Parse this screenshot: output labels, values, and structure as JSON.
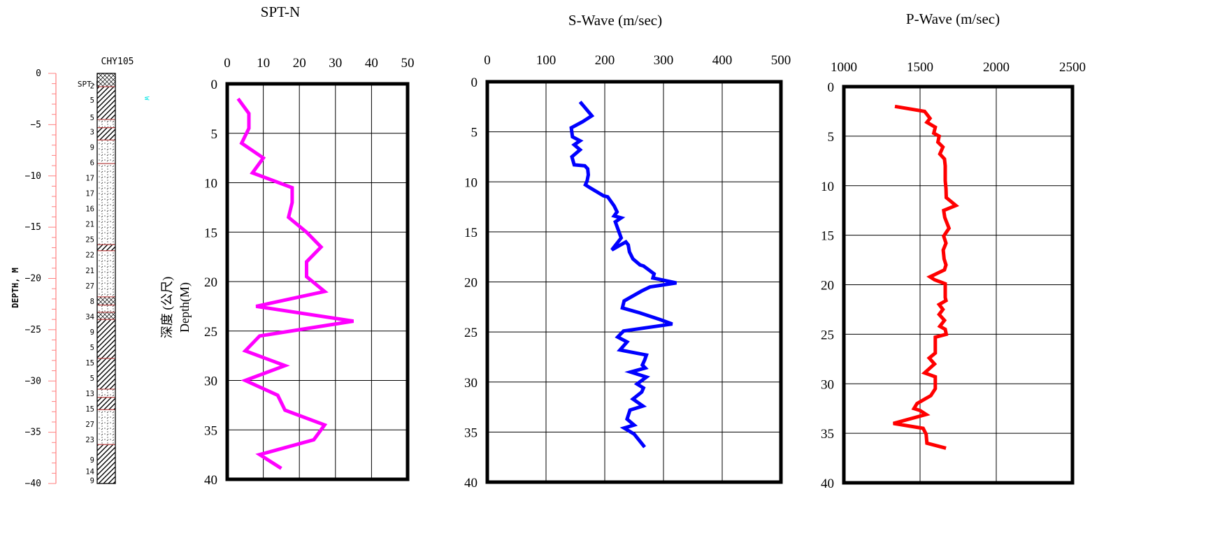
{
  "boring_log": {
    "title": "CHY105",
    "ylabel": "DEPTH, M",
    "spt_label": "SPT-N",
    "depth_ticks": [
      0,
      -5,
      -10,
      -15,
      -20,
      -25,
      -30,
      -35,
      -40
    ],
    "depth_tick_labels": [
      "0",
      "−5",
      "−10",
      "−15",
      "−20",
      "−25",
      "−30",
      "−35",
      "−40"
    ],
    "spt_values": [
      {
        "depth": 1.2,
        "n": "2"
      },
      {
        "depth": 2.6,
        "n": "5"
      },
      {
        "depth": 4.3,
        "n": "5"
      },
      {
        "depth": 5.7,
        "n": "3"
      },
      {
        "depth": 7.2,
        "n": "9"
      },
      {
        "depth": 8.7,
        "n": "6"
      },
      {
        "depth": 10.2,
        "n": "17"
      },
      {
        "depth": 11.7,
        "n": "17"
      },
      {
        "depth": 13.2,
        "n": "16"
      },
      {
        "depth": 14.7,
        "n": "21"
      },
      {
        "depth": 16.2,
        "n": "25"
      },
      {
        "depth": 17.7,
        "n": "22"
      },
      {
        "depth": 19.2,
        "n": "21"
      },
      {
        "depth": 20.7,
        "n": "27"
      },
      {
        "depth": 22.2,
        "n": "8"
      },
      {
        "depth": 23.7,
        "n": "34"
      },
      {
        "depth": 25.2,
        "n": "9"
      },
      {
        "depth": 26.7,
        "n": "5"
      },
      {
        "depth": 28.2,
        "n": "15"
      },
      {
        "depth": 29.7,
        "n": "5"
      },
      {
        "depth": 31.2,
        "n": "13"
      },
      {
        "depth": 32.7,
        "n": "15"
      },
      {
        "depth": 34.2,
        "n": "27"
      },
      {
        "depth": 35.7,
        "n": "23"
      },
      {
        "depth": 37.7,
        "n": "9"
      },
      {
        "depth": 38.8,
        "n": "14"
      },
      {
        "depth": 39.7,
        "n": "9"
      }
    ],
    "layers": [
      {
        "top": 0,
        "bottom": 1.3,
        "pattern": "cross"
      },
      {
        "top": 1.3,
        "bottom": 4.5,
        "pattern": "hatch"
      },
      {
        "top": 4.5,
        "bottom": 5.3,
        "pattern": "dots"
      },
      {
        "top": 5.3,
        "bottom": 6.5,
        "pattern": "hatch"
      },
      {
        "top": 6.5,
        "bottom": 8.8,
        "pattern": "dots"
      },
      {
        "top": 8.8,
        "bottom": 16.7,
        "pattern": "dots"
      },
      {
        "top": 16.7,
        "bottom": 17.3,
        "pattern": "hatch"
      },
      {
        "top": 17.3,
        "bottom": 21.8,
        "pattern": "dots"
      },
      {
        "top": 21.8,
        "bottom": 22.6,
        "pattern": "cross"
      },
      {
        "top": 22.6,
        "bottom": 23.3,
        "pattern": "dots"
      },
      {
        "top": 23.3,
        "bottom": 24.0,
        "pattern": "cross"
      },
      {
        "top": 24.0,
        "bottom": 27.8,
        "pattern": "hatch"
      },
      {
        "top": 27.8,
        "bottom": 30.8,
        "pattern": "hatch"
      },
      {
        "top": 30.8,
        "bottom": 31.6,
        "pattern": "dots"
      },
      {
        "top": 31.6,
        "bottom": 32.8,
        "pattern": "hatch"
      },
      {
        "top": 32.8,
        "bottom": 36.2,
        "pattern": "dots"
      },
      {
        "top": 36.2,
        "bottom": 40.0,
        "pattern": "hatch"
      }
    ],
    "colors": {
      "ruler": "#ff8080",
      "layer_border": "#b03030",
      "marker": "#00e5e5"
    }
  },
  "depth_axis_label": {
    "chinese": "深度 (公尺)",
    "english": "Depth(M)"
  },
  "chart_data": [
    {
      "type": "line",
      "title": "SPT-N",
      "xlabel": "",
      "ylabel": "",
      "xlim": [
        0,
        50
      ],
      "ylim": [
        40,
        0
      ],
      "xticks": [
        0,
        10,
        20,
        30,
        40,
        50
      ],
      "yticks": [
        0,
        5,
        10,
        15,
        20,
        25,
        30,
        35,
        40
      ],
      "grid": true,
      "color": "#ff00ff",
      "x": [
        3,
        6,
        6,
        4,
        10,
        7,
        18,
        18,
        17,
        22,
        26,
        22,
        22,
        27,
        8,
        35,
        9,
        5,
        16,
        5,
        14,
        16,
        27,
        24,
        9,
        15
      ],
      "y": [
        1.5,
        3,
        4.5,
        6,
        7.5,
        9,
        10.5,
        12,
        13.5,
        15,
        16.5,
        18,
        19.5,
        21,
        22.5,
        24,
        25.5,
        27,
        28.5,
        30,
        31.5,
        33,
        34.5,
        36,
        37.5,
        38.9
      ]
    },
    {
      "type": "line",
      "title": "S-Wave (m/sec)",
      "xlabel": "",
      "ylabel": "",
      "xlim": [
        0,
        500
      ],
      "ylim": [
        40,
        0
      ],
      "xticks": [
        0,
        100,
        200,
        300,
        400,
        500
      ],
      "yticks": [
        0,
        5,
        10,
        15,
        20,
        25,
        30,
        35,
        40
      ],
      "grid": true,
      "color": "#0000ff",
      "x": [
        162,
        158,
        178,
        162,
        143,
        145,
        158,
        148,
        158,
        144,
        148,
        166,
        171,
        172,
        170,
        167,
        175,
        198,
        205,
        216,
        221,
        216,
        228,
        218,
        223,
        228,
        212,
        236,
        240,
        242,
        248,
        260,
        266,
        275,
        284,
        282,
        322,
        277,
        263,
        233,
        230,
        260,
        296,
        315,
        232,
        222,
        238,
        226,
        271,
        268,
        264,
        269,
        244,
        271,
        255,
        266,
        263,
        248,
        265,
        243,
        238,
        250,
        233,
        250,
        268
      ],
      "y": [
        2.3,
        2.0,
        3.4,
        4.0,
        4.6,
        5.5,
        5.9,
        6.3,
        6.8,
        7.5,
        8.3,
        8.4,
        8.7,
        9.3,
        9.9,
        10.3,
        10.6,
        11.4,
        11.5,
        12.4,
        13.0,
        13.4,
        13.6,
        14.0,
        14.8,
        15.6,
        16.8,
        16.0,
        16.3,
        17.0,
        17.7,
        18.3,
        18.4,
        18.8,
        19.2,
        19.6,
        20.1,
        20.5,
        20.9,
        21.9,
        22.6,
        23.1,
        23.8,
        24.2,
        24.9,
        25.5,
        26.0,
        26.8,
        27.3,
        27.8,
        28.3,
        28.6,
        29.0,
        29.5,
        30.2,
        30.6,
        31.0,
        31.7,
        32.4,
        32.8,
        33.7,
        34.3,
        34.6,
        35.2,
        36.5
      ]
    },
    {
      "type": "line",
      "title": "P-Wave (m/sec)",
      "xlabel": "",
      "ylabel": "",
      "xlim": [
        1000,
        2500
      ],
      "ylim": [
        40,
        0
      ],
      "xticks": [
        1000,
        1500,
        2000,
        2500
      ],
      "yticks": [
        0,
        5,
        10,
        15,
        20,
        25,
        30,
        35,
        40
      ],
      "grid": true,
      "color": "#ff0000",
      "x": [
        1335,
        1530,
        1565,
        1545,
        1600,
        1590,
        1625,
        1617,
        1650,
        1630,
        1660,
        1665,
        1665,
        1665,
        1670,
        1672,
        1735,
        1655,
        1662,
        1690,
        1655,
        1670,
        1652,
        1658,
        1670,
        1660,
        1565,
        1595,
        1665,
        1665,
        1665,
        1670,
        1625,
        1650,
        1625,
        1660,
        1630,
        1665,
        1672,
        1600,
        1600,
        1600,
        1560,
        1595,
        1530,
        1600,
        1600,
        1570,
        1480,
        1460,
        1500,
        1540,
        1325,
        1520,
        1540,
        1545,
        1670
      ],
      "y": [
        2.0,
        2.5,
        3.2,
        3.6,
        4.1,
        4.7,
        5.0,
        5.6,
        6.1,
        6.8,
        7.3,
        8.0,
        8.8,
        9.5,
        10.3,
        11.2,
        12.0,
        12.5,
        13.2,
        14.3,
        15.1,
        15.8,
        16.5,
        17.4,
        18.0,
        18.5,
        19.2,
        19.5,
        19.9,
        20.6,
        21.3,
        21.6,
        22.0,
        22.5,
        23.0,
        23.6,
        24.2,
        24.5,
        25.0,
        25.3,
        26.1,
        26.9,
        27.4,
        28.0,
        28.9,
        29.3,
        30.5,
        31.2,
        32.0,
        32.5,
        32.7,
        33.1,
        34.0,
        34.5,
        35.1,
        36.0,
        36.5
      ]
    }
  ]
}
